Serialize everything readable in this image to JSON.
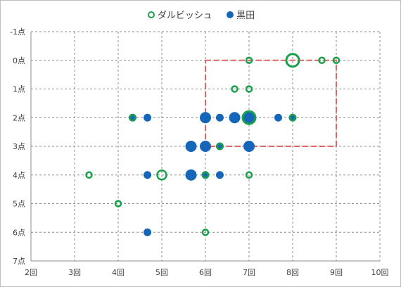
{
  "chart_data": {
    "type": "scatter",
    "title": "",
    "xlabel": "",
    "ylabel": "",
    "xlim": [
      2,
      10
    ],
    "ylim": [
      -1,
      7
    ],
    "y_reversed": true,
    "x_ticks": [
      "2回",
      "3回",
      "4回",
      "5回",
      "6回",
      "7回",
      "8回",
      "9回",
      "10回"
    ],
    "y_ticks": [
      "-1点",
      "0点",
      "1点",
      "2点",
      "3点",
      "4点",
      "5点",
      "6点",
      "7点"
    ],
    "grid": true,
    "legend_position": "top",
    "series": [
      {
        "name": "ダルビッシュ",
        "color": "#1aa04a",
        "marker": "open-circle",
        "points": [
          {
            "x": 3.33,
            "y": 4,
            "size": 1
          },
          {
            "x": 4.0,
            "y": 5,
            "size": 1
          },
          {
            "x": 4.33,
            "y": 2,
            "size": 1
          },
          {
            "x": 5.0,
            "y": 4,
            "size": 2
          },
          {
            "x": 6.0,
            "y": 4,
            "size": 1
          },
          {
            "x": 6.0,
            "y": 6,
            "size": 1
          },
          {
            "x": 6.33,
            "y": 3,
            "size": 1
          },
          {
            "x": 6.67,
            "y": 1,
            "size": 1
          },
          {
            "x": 7.0,
            "y": 0,
            "size": 1
          },
          {
            "x": 7.0,
            "y": 1,
            "size": 1
          },
          {
            "x": 7.0,
            "y": 2,
            "size": 3
          },
          {
            "x": 7.0,
            "y": 4,
            "size": 1
          },
          {
            "x": 8.0,
            "y": 0,
            "size": 3
          },
          {
            "x": 8.0,
            "y": 2,
            "size": 1
          },
          {
            "x": 8.67,
            "y": 0,
            "size": 1
          },
          {
            "x": 9.0,
            "y": 0,
            "size": 1
          }
        ]
      },
      {
        "name": "黒田",
        "color": "#1565b8",
        "marker": "filled-circle",
        "points": [
          {
            "x": 4.33,
            "y": 2,
            "size": 1
          },
          {
            "x": 4.67,
            "y": 2,
            "size": 1
          },
          {
            "x": 4.67,
            "y": 4,
            "size": 1
          },
          {
            "x": 4.67,
            "y": 6,
            "size": 1
          },
          {
            "x": 5.67,
            "y": 3,
            "size": 2
          },
          {
            "x": 5.67,
            "y": 4,
            "size": 2
          },
          {
            "x": 6.0,
            "y": 2,
            "size": 2
          },
          {
            "x": 6.0,
            "y": 3,
            "size": 2
          },
          {
            "x": 6.0,
            "y": 4,
            "size": 1
          },
          {
            "x": 6.33,
            "y": 2,
            "size": 1
          },
          {
            "x": 6.33,
            "y": 3,
            "size": 1
          },
          {
            "x": 6.33,
            "y": 4,
            "size": 1
          },
          {
            "x": 6.67,
            "y": 2,
            "size": 2
          },
          {
            "x": 7.0,
            "y": 2,
            "size": 2
          },
          {
            "x": 7.0,
            "y": 3,
            "size": 2
          },
          {
            "x": 7.67,
            "y": 2,
            "size": 1
          },
          {
            "x": 8.0,
            "y": 2,
            "size": 1
          }
        ]
      }
    ],
    "highlight_region": {
      "x": [
        6,
        9
      ],
      "y": [
        0,
        3
      ],
      "color": "#e06666",
      "style": "dashed"
    }
  }
}
